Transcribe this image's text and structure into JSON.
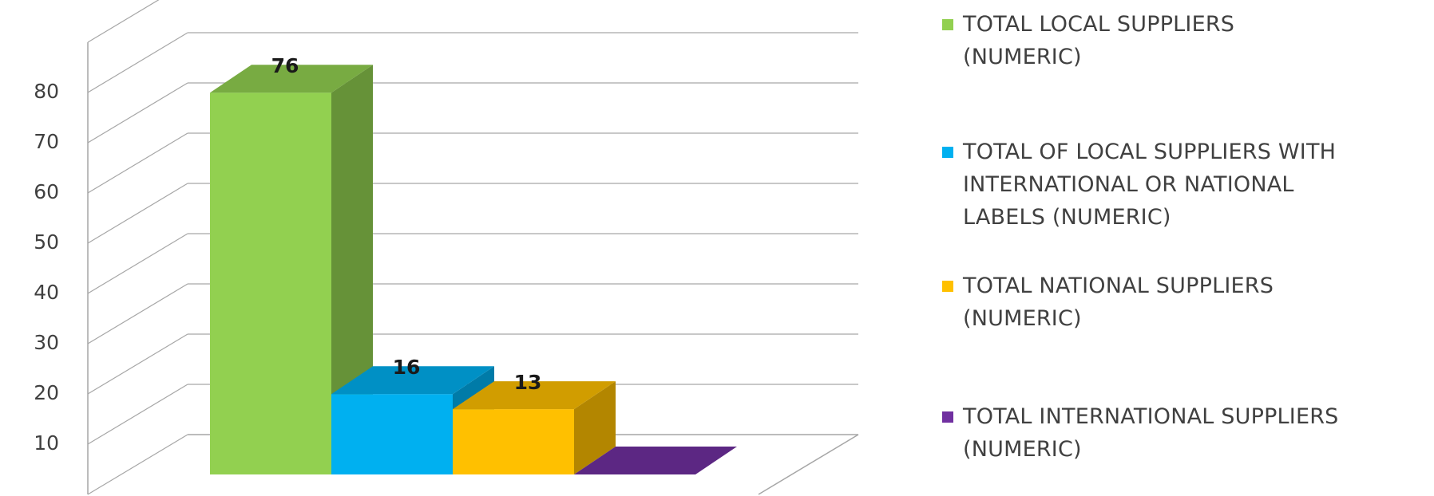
{
  "chart_data": {
    "type": "bar",
    "categories": [
      "TOTAL LOCAL SUPPLIERS (NUMERIC)",
      "TOTAL OF LOCAL SUPPLIERS WITH INTERNATIONAL OR NATIONAL LABELS (NUMERIC)",
      "TOTAL NATIONAL SUPPLIERS (NUMERIC)",
      "TOTAL INTERNATIONAL SUPPLIERS (NUMERIC)"
    ],
    "values": [
      76,
      16,
      13,
      0
    ],
    "data_labels": [
      "76",
      "16",
      "13",
      ""
    ],
    "yticks": [
      "10",
      "20",
      "30",
      "40",
      "50",
      "60",
      "70",
      "80"
    ],
    "ylim": [
      0,
      90
    ],
    "grid": true,
    "style": "3d",
    "legend_position": "right",
    "colors": [
      "#92d050",
      "#00b0f0",
      "#ffc000",
      "#7030a0"
    ]
  },
  "legend": [
    {
      "lines": [
        "TOTAL LOCAL SUPPLIERS",
        "(NUMERIC)"
      ]
    },
    {
      "lines": [
        "TOTAL OF LOCAL SUPPLIERS WITH",
        "INTERNATIONAL OR NATIONAL",
        "LABELS (NUMERIC)"
      ]
    },
    {
      "lines": [
        "TOTAL NATIONAL SUPPLIERS",
        "(NUMERIC)"
      ]
    },
    {
      "lines": [
        "TOTAL INTERNATIONAL SUPPLIERS",
        "(NUMERIC)"
      ]
    }
  ]
}
